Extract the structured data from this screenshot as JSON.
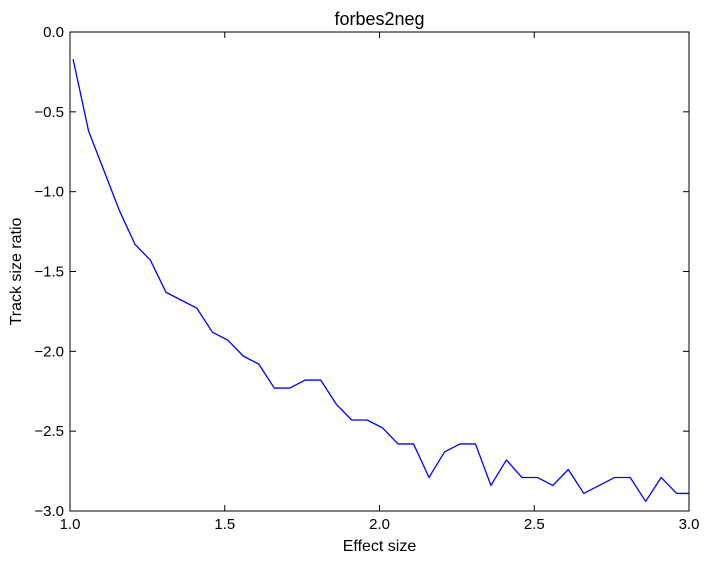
{
  "chart_data": {
    "type": "line",
    "title": "forbes2neg",
    "xlabel": "Effect size",
    "ylabel": "Track size ratio",
    "xlim": [
      1.0,
      3.0
    ],
    "ylim": [
      -3.0,
      0.0
    ],
    "xticks": [
      1.0,
      1.5,
      2.0,
      2.5,
      3.0
    ],
    "xtick_labels": [
      "1.0",
      "1.5",
      "2.0",
      "2.5",
      "3.0"
    ],
    "yticks": [
      0.0,
      -0.5,
      -1.0,
      -1.5,
      -2.0,
      -2.5,
      -3.0
    ],
    "ytick_labels": [
      "0.0",
      "−0.5",
      "−1.0",
      "−1.5",
      "−2.0",
      "−2.5",
      "−3.0"
    ],
    "grid": false,
    "series": [
      {
        "color": "#0000ff",
        "x": [
          1.01,
          1.06,
          1.11,
          1.16,
          1.21,
          1.26,
          1.31,
          1.36,
          1.41,
          1.46,
          1.51,
          1.56,
          1.61,
          1.66,
          1.71,
          1.76,
          1.81,
          1.86,
          1.91,
          1.96,
          2.01,
          2.06,
          2.11,
          2.16,
          2.21,
          2.26,
          2.31,
          2.36,
          2.41,
          2.46,
          2.51,
          2.56,
          2.61,
          2.66,
          2.71,
          2.76,
          2.81,
          2.86,
          2.91,
          2.96,
          3.0
        ],
        "y": [
          -0.17,
          -0.62,
          -0.87,
          -1.12,
          -1.33,
          -1.43,
          -1.63,
          -1.68,
          -1.73,
          -1.88,
          -1.93,
          -2.03,
          -2.08,
          -2.23,
          -2.23,
          -2.18,
          -2.18,
          -2.33,
          -2.43,
          -2.43,
          -2.48,
          -2.58,
          -2.58,
          -2.79,
          -2.63,
          -2.58,
          -2.58,
          -2.84,
          -2.68,
          -2.79,
          -2.79,
          -2.84,
          -2.74,
          -2.89,
          -2.84,
          -2.79,
          -2.79,
          -2.94,
          -2.79,
          -2.89,
          -2.89
        ]
      }
    ]
  }
}
